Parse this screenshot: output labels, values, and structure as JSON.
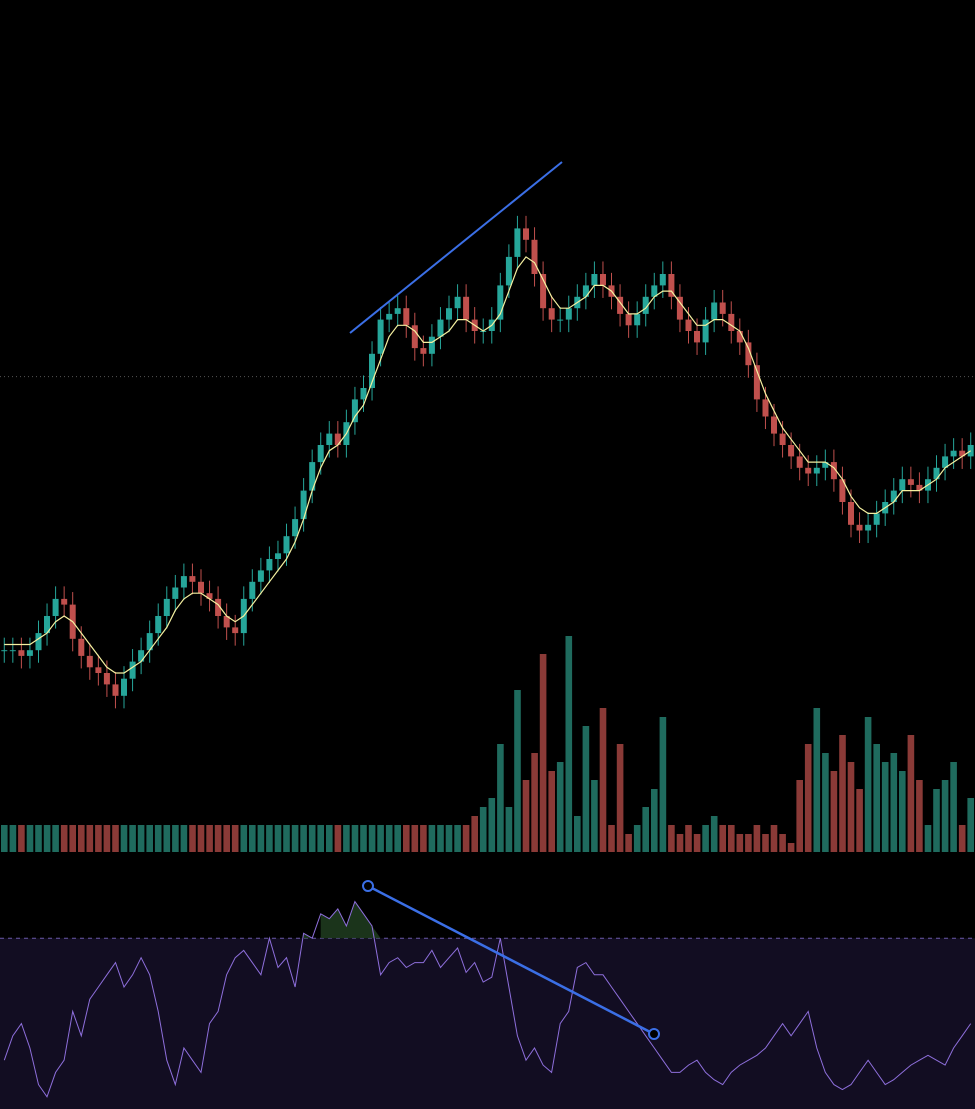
{
  "colors": {
    "background": "#000000",
    "up": "#26a69a",
    "up_volume": "#1f6b5e",
    "down": "#c0504d",
    "down_volume": "#8a3a37",
    "ma_line": "#f5f0a0",
    "trendline": "#3b6fe6",
    "rsi_line": "#8e6fdc",
    "rsi_band": "#120d22",
    "rsi_overbought_fill": "#1e3a1e",
    "price_line": "#555555"
  },
  "chart_data": [
    {
      "type": "candlestick",
      "title": "",
      "xlabel": "",
      "ylabel": "",
      "ylim": [
        0,
        100
      ],
      "price_line_level": 62,
      "close": [
        14,
        14,
        13,
        14,
        17,
        20,
        23,
        22,
        16,
        13,
        11,
        10,
        8,
        6,
        9,
        12,
        14,
        17,
        20,
        23,
        25,
        27,
        26,
        24,
        23,
        20,
        18,
        17,
        23,
        26,
        28,
        30,
        31,
        34,
        37,
        42,
        47,
        50,
        52,
        50,
        54,
        58,
        60,
        66,
        72,
        73,
        74,
        71,
        67,
        66,
        69,
        72,
        74,
        76,
        72,
        70,
        70,
        72,
        78,
        83,
        88,
        86,
        80,
        74,
        72,
        72,
        74,
        76,
        78,
        80,
        78,
        76,
        73,
        71,
        73,
        76,
        78,
        80,
        76,
        72,
        70,
        68,
        72,
        75,
        73,
        70,
        68,
        64,
        58,
        55,
        52,
        50,
        48,
        46,
        45,
        46,
        47,
        44,
        40,
        36,
        35,
        36,
        38,
        40,
        42,
        44,
        43,
        42,
        44,
        46,
        48,
        49,
        48,
        50
      ],
      "ma": [
        15,
        15,
        15,
        15,
        16,
        17,
        19,
        20,
        19,
        17,
        15,
        13,
        11,
        10,
        10,
        11,
        12,
        14,
        16,
        18,
        21,
        23,
        24,
        24,
        23,
        22,
        20,
        19,
        20,
        22,
        24,
        26,
        28,
        30,
        33,
        37,
        42,
        46,
        49,
        50,
        52,
        55,
        57,
        61,
        65,
        69,
        71,
        71,
        70,
        68,
        68,
        69,
        70,
        72,
        72,
        71,
        70,
        71,
        73,
        77,
        81,
        83,
        82,
        79,
        76,
        74,
        74,
        75,
        76,
        78,
        78,
        77,
        75,
        73,
        73,
        74,
        76,
        77,
        77,
        75,
        73,
        71,
        71,
        72,
        72,
        71,
        70,
        67,
        63,
        59,
        56,
        53,
        51,
        49,
        47,
        47,
        47,
        46,
        44,
        41,
        39,
        38,
        38,
        39,
        40,
        42,
        42,
        42,
        43,
        44,
        46,
        47,
        48,
        49
      ],
      "volume": [
        3,
        3,
        3,
        3,
        3,
        3,
        3,
        3,
        3,
        3,
        3,
        3,
        3,
        3,
        3,
        3,
        3,
        3,
        3,
        3,
        3,
        3,
        3,
        3,
        3,
        3,
        3,
        3,
        3,
        3,
        3,
        3,
        3,
        3,
        3,
        3,
        3,
        3,
        3,
        3,
        3,
        3,
        3,
        3,
        3,
        3,
        3,
        3,
        3,
        3,
        3,
        3,
        3,
        3,
        3,
        4,
        5,
        6,
        12,
        5,
        18,
        8,
        11,
        22,
        9,
        10,
        24,
        4,
        14,
        8,
        16,
        3,
        12,
        2,
        3,
        5,
        7,
        15,
        3,
        2,
        3,
        2,
        3,
        4,
        3,
        3,
        2,
        2,
        3,
        2,
        3,
        2,
        1,
        8,
        12,
        16,
        11,
        9,
        13,
        10,
        7,
        15,
        12,
        10,
        11,
        9,
        13,
        8,
        3,
        7,
        8,
        10,
        3,
        6
      ]
    },
    {
      "type": "line",
      "title": "",
      "xlabel": "",
      "ylabel": "",
      "ylim": [
        0,
        100
      ],
      "overbought_level": 70,
      "rsi": [
        20,
        30,
        35,
        25,
        10,
        5,
        15,
        20,
        40,
        30,
        45,
        50,
        55,
        60,
        50,
        55,
        62,
        55,
        40,
        20,
        10,
        25,
        20,
        15,
        35,
        40,
        55,
        62,
        65,
        60,
        55,
        70,
        58,
        62,
        50,
        72,
        70,
        80,
        78,
        82,
        75,
        85,
        80,
        75,
        55,
        60,
        62,
        58,
        60,
        60,
        65,
        58,
        62,
        66,
        56,
        60,
        52,
        54,
        70,
        50,
        30,
        20,
        25,
        18,
        15,
        35,
        40,
        58,
        60,
        55,
        55,
        50,
        45,
        40,
        35,
        30,
        25,
        20,
        15,
        15,
        18,
        20,
        15,
        12,
        10,
        15,
        18,
        20,
        22,
        25,
        30,
        35,
        30,
        35,
        40,
        25,
        15,
        10,
        8,
        10,
        15,
        20,
        15,
        10,
        12,
        15,
        18,
        20,
        22,
        20,
        18,
        25,
        30,
        35
      ]
    }
  ]
}
